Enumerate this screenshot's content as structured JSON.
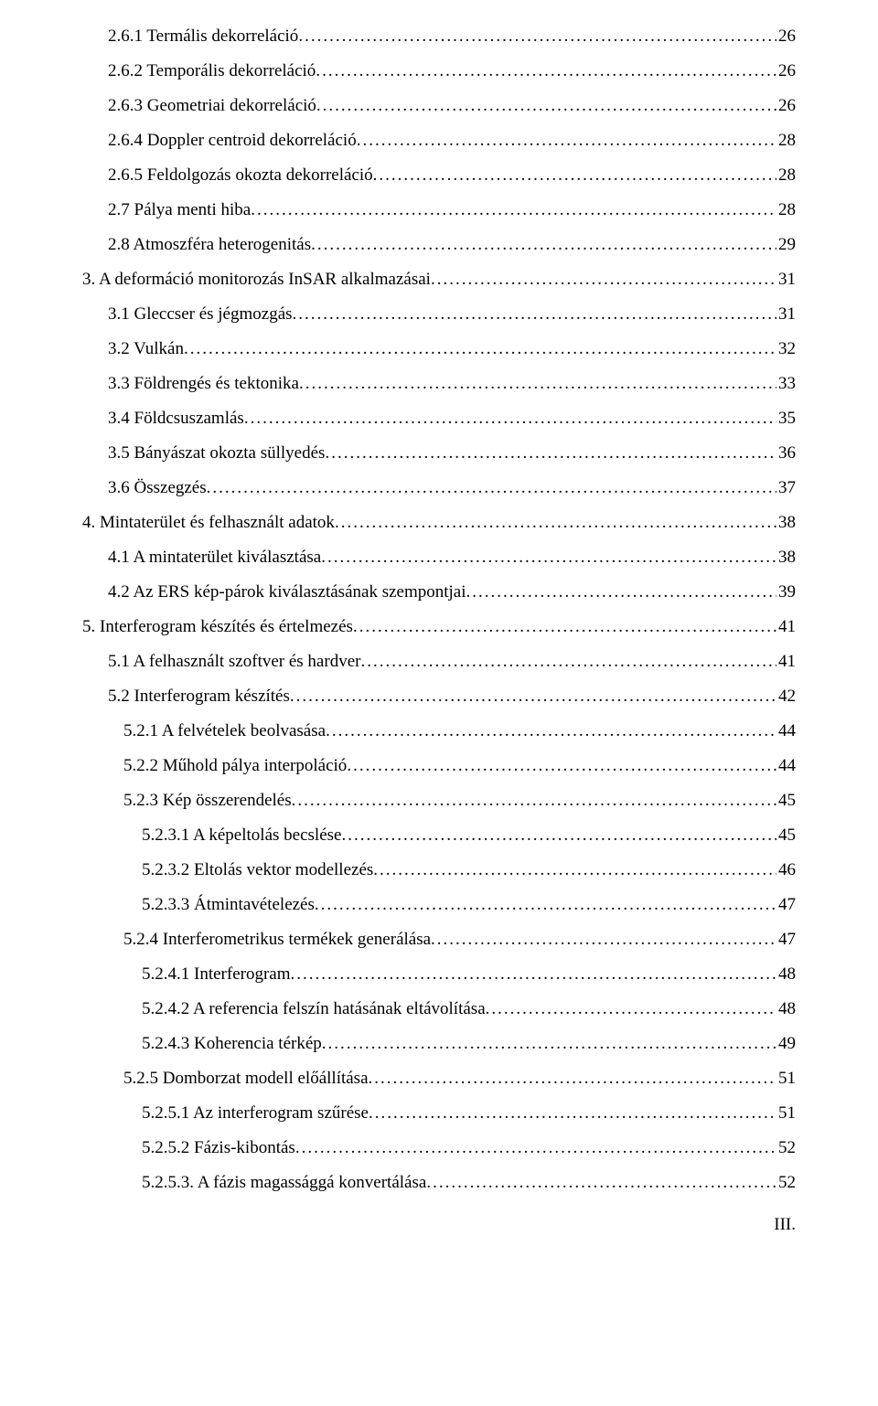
{
  "toc": [
    {
      "indent": 1,
      "title": "2.6.1 Termális dekorreláció",
      "page": "26"
    },
    {
      "indent": 1,
      "title": "2.6.2 Temporális dekorreláció",
      "page": "26"
    },
    {
      "indent": 1,
      "title": "2.6.3 Geometriai dekorreláció",
      "page": "26"
    },
    {
      "indent": 1,
      "title": "2.6.4 Doppler centroid dekorreláció",
      "page": "28"
    },
    {
      "indent": 1,
      "title": "2.6.5 Feldolgozás okozta dekorreláció",
      "page": "28"
    },
    {
      "indent": 1,
      "title": "2.7 Pálya menti hiba",
      "page": "28"
    },
    {
      "indent": 1,
      "title": "2.8 Atmoszféra heterogenitás",
      "page": "29"
    },
    {
      "indent": 0,
      "title": "3. A deformáció monitorozás InSAR alkalmazásai",
      "page": "31"
    },
    {
      "indent": 1,
      "title": "3.1 Gleccser és jégmozgás",
      "page": "31"
    },
    {
      "indent": 1,
      "title": "3.2 Vulkán",
      "page": "32"
    },
    {
      "indent": 1,
      "title": "3.3 Földrengés és tektonika",
      "page": "33"
    },
    {
      "indent": 1,
      "title": "3.4 Földcsuszamlás",
      "page": "35"
    },
    {
      "indent": 1,
      "title": "3.5 Bányászat okozta süllyedés",
      "page": "36"
    },
    {
      "indent": 1,
      "title": "3.6 Összegzés",
      "page": "37"
    },
    {
      "indent": 0,
      "title": "4. Mintaterület és felhasznált adatok",
      "page": "38"
    },
    {
      "indent": 1,
      "title": "4.1 A mintaterület kiválasztása",
      "page": "38"
    },
    {
      "indent": 1,
      "title": "4.2 Az ERS kép-párok kiválasztásának szempontjai",
      "page": "39"
    },
    {
      "indent": 0,
      "title": "5. Interferogram készítés és értelmezés",
      "page": "41"
    },
    {
      "indent": 1,
      "title": "5.1 A felhasznált szoftver és hardver",
      "page": "41"
    },
    {
      "indent": 1,
      "title": "5.2 Interferogram készítés",
      "page": "42"
    },
    {
      "indent": 2,
      "title": "5.2.1 A felvételek beolvasása",
      "page": "44"
    },
    {
      "indent": 2,
      "title": "5.2.2 Műhold pálya interpoláció",
      "page": "44"
    },
    {
      "indent": 2,
      "title": "5.2.3 Kép összerendelés",
      "page": "45"
    },
    {
      "indent": 3,
      "title": "5.2.3.1 A képeltolás becslése",
      "page": "45"
    },
    {
      "indent": 3,
      "title": "5.2.3.2 Eltolás vektor modellezés",
      "page": "46"
    },
    {
      "indent": 3,
      "title": "5.2.3.3 Átmintavételezés",
      "page": "47"
    },
    {
      "indent": 2,
      "title": "5.2.4 Interferometrikus termékek generálása",
      "page": "47"
    },
    {
      "indent": 3,
      "title": "5.2.4.1 Interferogram",
      "page": "48"
    },
    {
      "indent": 3,
      "title": "5.2.4.2 A referencia felszín hatásának eltávolítása",
      "page": "48"
    },
    {
      "indent": 3,
      "title": "5.2.4.3 Koherencia térkép",
      "page": "49"
    },
    {
      "indent": 2,
      "title": "5.2.5 Domborzat modell előállítása",
      "page": "51"
    },
    {
      "indent": 3,
      "title": "5.2.5.1 Az interferogram szűrése",
      "page": "51"
    },
    {
      "indent": 3,
      "title": "5.2.5.2 Fázis-kibontás",
      "page": "52"
    },
    {
      "indent": 3,
      "title": "5.2.5.3. A fázis magassággá konvertálása",
      "page": "52"
    }
  ],
  "footer": "III."
}
